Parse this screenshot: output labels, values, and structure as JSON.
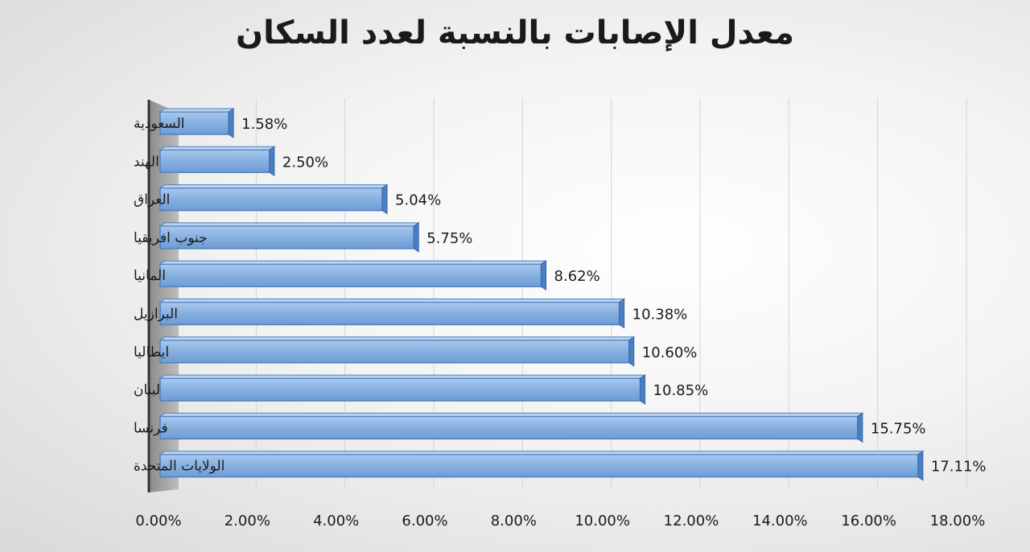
{
  "chart_data": {
    "type": "bar",
    "orientation": "horizontal",
    "title": "معدل الإصابات بالنسبة لعدد السكان",
    "categories": [
      "السعودية",
      "الهند",
      "العراق",
      "جنوب افريقيا",
      "المانيا",
      "البرازيل",
      "ايطاليا",
      "لبنان",
      "فرنسا",
      "الولايات المتحدة"
    ],
    "values": [
      1.58,
      2.5,
      5.04,
      5.75,
      8.62,
      10.38,
      10.6,
      10.85,
      15.75,
      17.11
    ],
    "value_labels": [
      "1.58%",
      "2.50%",
      "5.04%",
      "5.75%",
      "8.62%",
      "10.38%",
      "10.60%",
      "10.85%",
      "15.75%",
      "17.11%"
    ],
    "x_ticks": [
      "0.00%",
      "2.00%",
      "4.00%",
      "6.00%",
      "8.00%",
      "10.00%",
      "12.00%",
      "14.00%",
      "16.00%",
      "18.00%"
    ],
    "xlim": [
      0,
      18
    ],
    "grid": true,
    "bar_color": "#8DB4E2",
    "bar_edge_color": "#4F81BD",
    "legend": false
  }
}
